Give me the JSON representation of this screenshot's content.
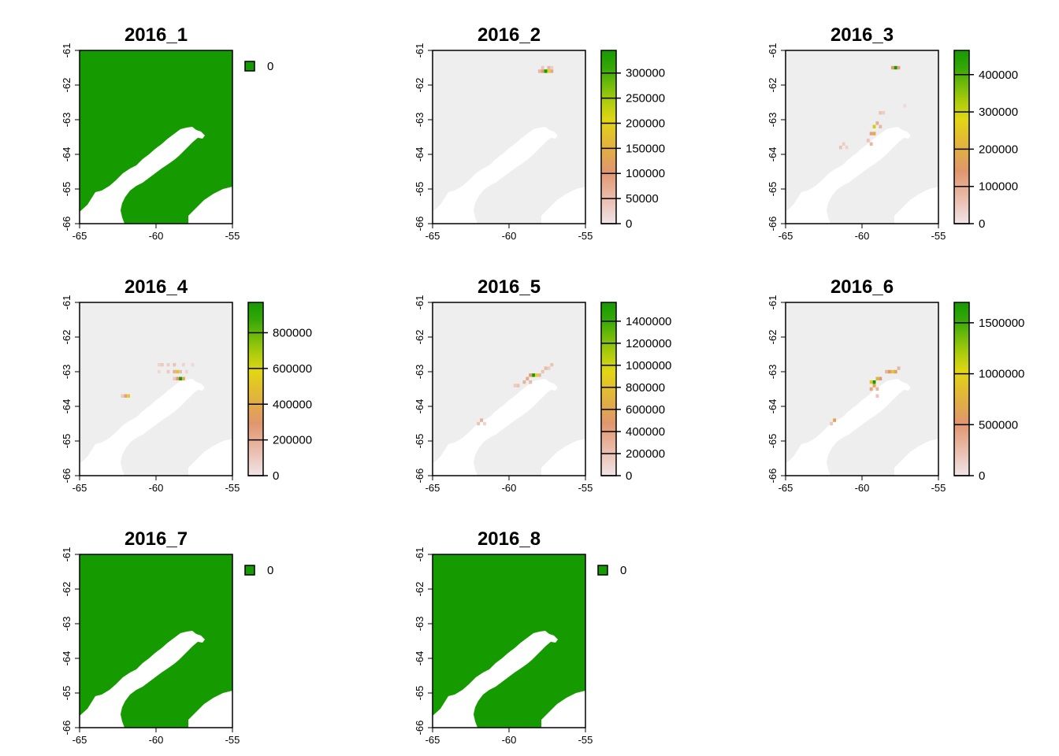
{
  "figure": {
    "background": "#ffffff",
    "plot_background": "#eeeeee",
    "land_color": "#ffffff",
    "constant_fill": "#159a00"
  },
  "chart_data": [
    {
      "type": "heatmap",
      "title": "2016_1",
      "xlim": [
        -65,
        -55
      ],
      "ylim": [
        -66,
        -61
      ],
      "x_ticks": [
        "-65",
        "-60",
        "-55"
      ],
      "y_ticks": [
        "-61",
        "-62",
        "-63",
        "-64",
        "-65",
        "-66"
      ],
      "legend": {
        "kind": "categorical",
        "entries": [
          "0"
        ],
        "colors": [
          "#159a00"
        ]
      },
      "cells": []
    },
    {
      "type": "heatmap",
      "title": "2016_2",
      "xlim": [
        -65,
        -55
      ],
      "ylim": [
        -66,
        -61
      ],
      "x_ticks": [
        "-65",
        "-60",
        "-55"
      ],
      "y_ticks": [
        "-61",
        "-62",
        "-63",
        "-64",
        "-65",
        "-66"
      ],
      "legend": {
        "kind": "continuous",
        "max": 345000,
        "tick_values": [
          0,
          50000,
          100000,
          150000,
          200000,
          250000,
          300000
        ],
        "tick_labels": [
          "0",
          "50000",
          "100000",
          "150000",
          "200000",
          "250000",
          "300000"
        ]
      },
      "cells": [
        [
          -58.0,
          -61.6,
          60000
        ],
        [
          -57.8,
          -61.6,
          110000
        ],
        [
          -57.6,
          -61.6,
          345000
        ],
        [
          -57.4,
          -61.6,
          200000
        ],
        [
          -57.2,
          -61.6,
          80000
        ],
        [
          -57.8,
          -61.5,
          40000
        ],
        [
          -57.4,
          -61.5,
          60000
        ],
        [
          -57.2,
          -61.5,
          30000
        ]
      ]
    },
    {
      "type": "heatmap",
      "title": "2016_3",
      "xlim": [
        -65,
        -55
      ],
      "ylim": [
        -66,
        -61
      ],
      "x_ticks": [
        "-65",
        "-60",
        "-55"
      ],
      "y_ticks": [
        "-61",
        "-62",
        "-63",
        "-64",
        "-65",
        "-66"
      ],
      "legend": {
        "kind": "continuous",
        "max": 465000,
        "tick_values": [
          0,
          100000,
          200000,
          300000,
          400000
        ],
        "tick_labels": [
          "0",
          "100000",
          "200000",
          "300000",
          "400000"
        ]
      },
      "cells": [
        [
          -58.0,
          -61.5,
          160000
        ],
        [
          -57.8,
          -61.5,
          465000
        ],
        [
          -57.6,
          -61.5,
          120000
        ],
        [
          -58.8,
          -62.8,
          60000
        ],
        [
          -58.6,
          -62.8,
          40000
        ],
        [
          -59.0,
          -63.1,
          100000
        ],
        [
          -59.2,
          -63.2,
          300000
        ],
        [
          -58.8,
          -63.2,
          80000
        ],
        [
          -59.4,
          -63.4,
          120000
        ],
        [
          -59.2,
          -63.4,
          200000
        ],
        [
          -59.6,
          -63.6,
          60000
        ],
        [
          -59.4,
          -63.7,
          80000
        ],
        [
          -61.2,
          -63.7,
          40000
        ],
        [
          -61.4,
          -63.8,
          60000
        ],
        [
          -61.0,
          -63.8,
          30000
        ],
        [
          -57.2,
          -62.6,
          20000
        ]
      ]
    },
    {
      "type": "heatmap",
      "title": "2016_4",
      "xlim": [
        -65,
        -55
      ],
      "ylim": [
        -66,
        -61
      ],
      "x_ticks": [
        "-65",
        "-60",
        "-55"
      ],
      "y_ticks": [
        "-61",
        "-62",
        "-63",
        "-64",
        "-65",
        "-66"
      ],
      "legend": {
        "kind": "continuous",
        "max": 970000,
        "tick_values": [
          0,
          200000,
          400000,
          600000,
          800000
        ],
        "tick_labels": [
          "0",
          "200000",
          "400000",
          "600000",
          "800000"
        ]
      },
      "cells": [
        [
          -59.8,
          -62.8,
          60000
        ],
        [
          -59.6,
          -62.8,
          100000
        ],
        [
          -59.2,
          -62.8,
          80000
        ],
        [
          -58.8,
          -62.8,
          120000
        ],
        [
          -58.2,
          -62.8,
          60000
        ],
        [
          -57.6,
          -62.8,
          40000
        ],
        [
          -58.8,
          -63.0,
          200000
        ],
        [
          -58.6,
          -63.0,
          500000
        ],
        [
          -58.4,
          -63.0,
          150000
        ],
        [
          -58.0,
          -63.0,
          60000
        ],
        [
          -59.2,
          -63.0,
          100000
        ],
        [
          -59.8,
          -63.0,
          50000
        ],
        [
          -58.6,
          -63.2,
          300000
        ],
        [
          -58.4,
          -63.2,
          970000
        ],
        [
          -58.2,
          -63.2,
          400000
        ],
        [
          -58.8,
          -63.2,
          100000
        ],
        [
          -62.0,
          -63.7,
          250000
        ],
        [
          -61.8,
          -63.7,
          550000
        ],
        [
          -62.2,
          -63.7,
          100000
        ]
      ]
    },
    {
      "type": "heatmap",
      "title": "2016_5",
      "xlim": [
        -65,
        -55
      ],
      "ylim": [
        -66,
        -61
      ],
      "x_ticks": [
        "-65",
        "-60",
        "-55"
      ],
      "y_ticks": [
        "-61",
        "-62",
        "-63",
        "-64",
        "-65",
        "-66"
      ],
      "legend": {
        "kind": "continuous",
        "max": 1570000,
        "tick_values": [
          0,
          200000,
          400000,
          600000,
          800000,
          1000000,
          1200000,
          1400000
        ],
        "tick_labels": [
          "0",
          "200000",
          "400000",
          "600000",
          "800000",
          "1000000",
          "1200000",
          "1400000"
        ]
      },
      "cells": [
        [
          -57.2,
          -62.8,
          200000
        ],
        [
          -57.4,
          -62.9,
          150000
        ],
        [
          -57.6,
          -62.9,
          250000
        ],
        [
          -58.4,
          -63.1,
          1570000
        ],
        [
          -58.2,
          -63.1,
          900000
        ],
        [
          -58.6,
          -63.1,
          500000
        ],
        [
          -58.0,
          -63.1,
          300000
        ],
        [
          -57.8,
          -63.0,
          200000
        ],
        [
          -58.8,
          -63.2,
          350000
        ],
        [
          -58.6,
          -63.3,
          250000
        ],
        [
          -59.0,
          -63.3,
          300000
        ],
        [
          -59.4,
          -63.4,
          200000
        ],
        [
          -59.6,
          -63.4,
          150000
        ],
        [
          -61.8,
          -64.4,
          300000
        ],
        [
          -62.0,
          -64.5,
          200000
        ],
        [
          -61.6,
          -64.5,
          100000
        ]
      ]
    },
    {
      "type": "heatmap",
      "title": "2016_6",
      "xlim": [
        -65,
        -55
      ],
      "ylim": [
        -66,
        -61
      ],
      "x_ticks": [
        "-65",
        "-60",
        "-55"
      ],
      "y_ticks": [
        "-61",
        "-62",
        "-63",
        "-64",
        "-65",
        "-66"
      ],
      "legend": {
        "kind": "continuous",
        "max": 1700000,
        "tick_values": [
          0,
          500000,
          1000000,
          1500000
        ],
        "tick_labels": [
          "0",
          "500000",
          "1000000",
          "1500000"
        ]
      },
      "cells": [
        [
          -57.6,
          -62.9,
          300000
        ],
        [
          -57.8,
          -63.0,
          600000
        ],
        [
          -58.0,
          -63.0,
          900000
        ],
        [
          -58.2,
          -63.0,
          500000
        ],
        [
          -58.4,
          -63.0,
          300000
        ],
        [
          -58.8,
          -63.2,
          500000
        ],
        [
          -59.0,
          -63.2,
          800000
        ],
        [
          -59.2,
          -63.3,
          1700000
        ],
        [
          -59.4,
          -63.3,
          900000
        ],
        [
          -59.2,
          -63.4,
          700000
        ],
        [
          -59.0,
          -63.5,
          300000
        ],
        [
          -59.4,
          -63.5,
          400000
        ],
        [
          -59.0,
          -63.7,
          200000
        ],
        [
          -61.8,
          -64.4,
          600000
        ],
        [
          -62.0,
          -64.5,
          200000
        ]
      ]
    },
    {
      "type": "heatmap",
      "title": "2016_7",
      "xlim": [
        -65,
        -55
      ],
      "ylim": [
        -66,
        -61
      ],
      "x_ticks": [
        "-65",
        "-60",
        "-55"
      ],
      "y_ticks": [
        "-61",
        "-62",
        "-63",
        "-64",
        "-65",
        "-66"
      ],
      "legend": {
        "kind": "categorical",
        "entries": [
          "0"
        ],
        "colors": [
          "#159a00"
        ]
      },
      "cells": []
    },
    {
      "type": "heatmap",
      "title": "2016_8",
      "xlim": [
        -65,
        -55
      ],
      "ylim": [
        -66,
        -61
      ],
      "x_ticks": [
        "-65",
        "-60",
        "-55"
      ],
      "y_ticks": [
        "-61",
        "-62",
        "-63",
        "-64",
        "-65",
        "-66"
      ],
      "legend": {
        "kind": "categorical",
        "entries": [
          "0"
        ],
        "colors": [
          "#159a00"
        ]
      },
      "cells": []
    }
  ]
}
